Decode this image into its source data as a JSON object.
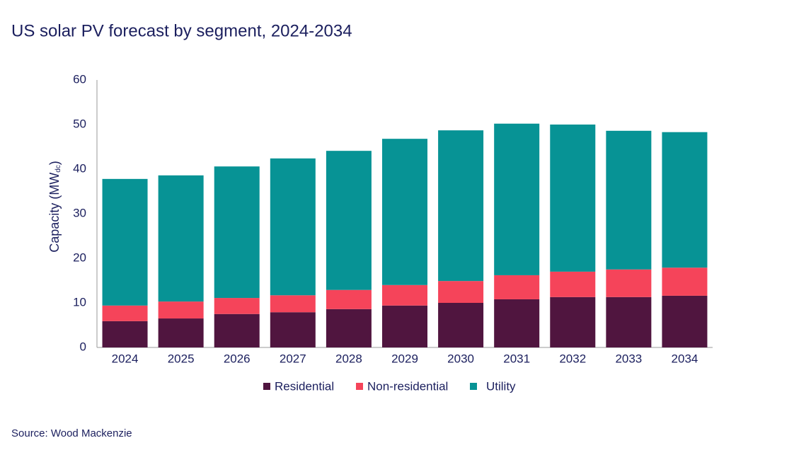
{
  "chart_data": {
    "type": "stacked_bar",
    "title": "US solar PV forecast by segment, 2024-2034",
    "y_label": {
      "main": "Capacity (MW",
      "sub": "dc",
      "end": ")"
    },
    "source": "Source: Wood Mackenzie",
    "categories": [
      "2024",
      "2025",
      "2026",
      "2027",
      "2028",
      "2029",
      "2030",
      "2031",
      "2032",
      "2033",
      "2034"
    ],
    "series": [
      {
        "name": "Residential",
        "color": "#50153f",
        "values": [
          5.9,
          6.5,
          7.5,
          7.9,
          8.6,
          9.4,
          10.0,
          10.8,
          11.3,
          11.3,
          11.6
        ]
      },
      {
        "name": "Non-residential",
        "color": "#f5445a",
        "values": [
          3.5,
          3.8,
          3.6,
          3.8,
          4.3,
          4.6,
          4.9,
          5.4,
          5.7,
          6.2,
          6.3
        ]
      },
      {
        "name": "Utility",
        "color": "#079395",
        "values": [
          28.4,
          28.3,
          29.5,
          30.7,
          31.2,
          32.8,
          33.8,
          34.0,
          33.0,
          31.1,
          30.4
        ]
      }
    ],
    "ylim": [
      0,
      60
    ],
    "yticks": [
      0,
      10,
      20,
      30,
      40,
      50,
      60
    ],
    "grid": false,
    "legend": "bottom"
  }
}
